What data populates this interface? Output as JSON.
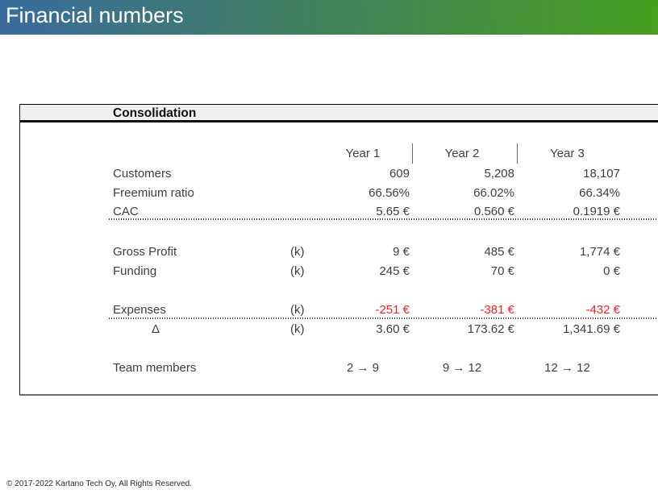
{
  "slide": {
    "title": "Financial numbers",
    "footer": "© 2017-2022 Kartano Tech Oy, All Rights Reserved.",
    "colors": {
      "header_gradient_start": "#3a6b9e",
      "header_gradient_end": "#47a01e",
      "negative_value": "#ff1f1f",
      "table_text": "#3f3f3f"
    }
  },
  "table": {
    "title": "Consolidation",
    "columns": [
      "Year 1",
      "Year 2",
      "Year 3"
    ],
    "rows": [
      {
        "label": "Customers",
        "unit": "",
        "values": [
          "609",
          "5,208",
          "18,107"
        ]
      },
      {
        "label": "Freemium ratio",
        "unit": "",
        "values": [
          "66.56%",
          "66.02%",
          "66.34%"
        ]
      },
      {
        "label": "CAC",
        "unit": "",
        "values": [
          "5.65 €",
          "0.560 €",
          "0.1919 €"
        ]
      },
      {
        "label": "Gross Profit",
        "unit": "(k)",
        "values": [
          "9 €",
          "485 €",
          "1,774 €"
        ]
      },
      {
        "label": "Funding",
        "unit": "(k)",
        "values": [
          "245 €",
          "70 €",
          "0 €"
        ]
      },
      {
        "label": "Expenses",
        "unit": "(k)",
        "values": [
          "-251 €",
          "-381 €",
          "-432 €"
        ]
      },
      {
        "label": "Δ",
        "unit": "(k)",
        "values": [
          "3.60 €",
          "173.62 €",
          "1,341.69 €"
        ]
      },
      {
        "label": "Team members",
        "unit": "",
        "values": [
          "2 → 9",
          "9 → 12",
          "12 → 12"
        ]
      }
    ]
  }
}
